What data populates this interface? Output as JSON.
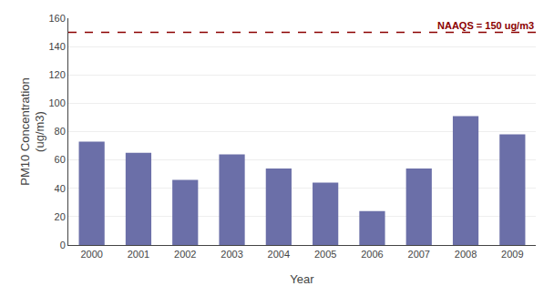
{
  "chart_data": {
    "type": "bar",
    "categories": [
      "2000",
      "2001",
      "2002",
      "2003",
      "2004",
      "2005",
      "2006",
      "2007",
      "2008",
      "2009"
    ],
    "values": [
      73,
      65,
      46,
      64,
      54,
      44,
      24,
      54,
      91,
      78
    ],
    "color": "#6B6FA8",
    "xlabel": "Year",
    "ylabel": "PM10 Concentration\n(ug/m3)",
    "ylim": [
      0,
      160
    ],
    "yticks": [
      0,
      20,
      40,
      60,
      80,
      100,
      120,
      140,
      160
    ],
    "grid": true,
    "annotations": [
      {
        "text": "NAAQS = 150 ug/m3",
        "y": 150,
        "color": "#8B0000",
        "line_style": "dashed"
      }
    ]
  }
}
